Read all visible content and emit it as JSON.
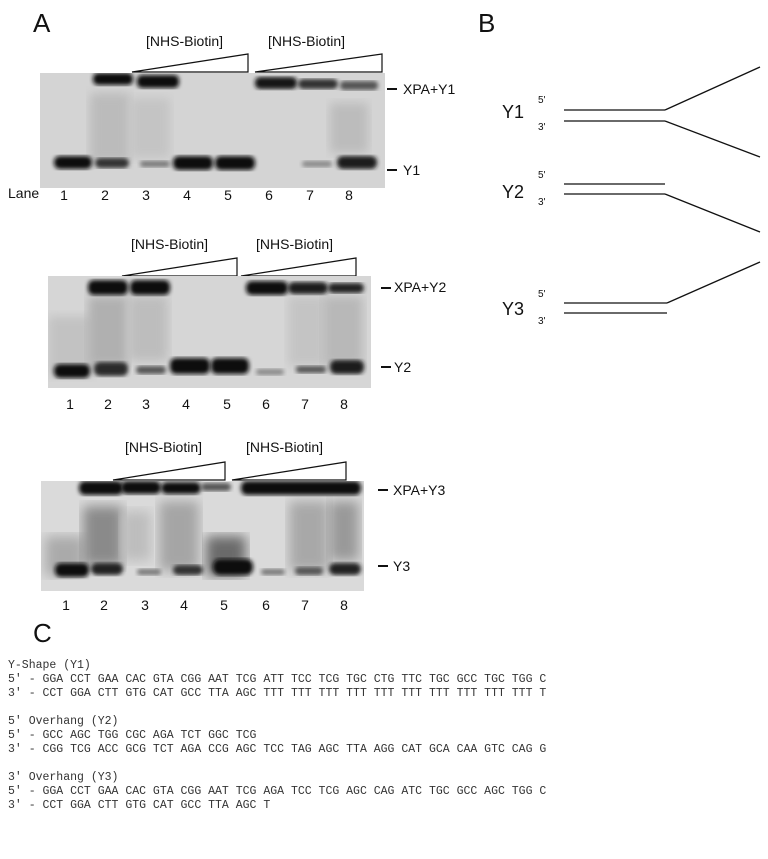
{
  "panels": {
    "a": "A",
    "b": "B",
    "c": "C"
  },
  "gel1": {
    "wedges": [
      "[NHS-Biotin]",
      "[NHS-Biotin]"
    ],
    "complex": "XPA+Y1",
    "free": "Y1",
    "lane_word": "Lane",
    "lanes": [
      "1",
      "2",
      "3",
      "4",
      "5",
      "6",
      "7",
      "8"
    ]
  },
  "gel2": {
    "wedges": [
      "[NHS-Biotin]",
      "[NHS-Biotin]"
    ],
    "complex": "XPA+Y2",
    "free": "Y2",
    "lanes": [
      "1",
      "2",
      "3",
      "4",
      "5",
      "6",
      "7",
      "8"
    ]
  },
  "gel3": {
    "wedges": [
      "[NHS-Biotin]",
      "[NHS-Biotin]"
    ],
    "complex": "XPA+Y3",
    "free": "Y3",
    "lanes": [
      "1",
      "2",
      "3",
      "4",
      "5",
      "6",
      "7",
      "8"
    ]
  },
  "schematic": {
    "y1": {
      "name": "Y1",
      "top": "5'",
      "bottom": "3'"
    },
    "y2": {
      "name": "Y2",
      "top": "5'",
      "bottom": "3'"
    },
    "y3": {
      "name": "Y3",
      "top": "5'",
      "bottom": "3'"
    }
  },
  "sequences": {
    "y1_title": "Y-Shape (Y1)",
    "y1_5": "5' - GGA CCT GAA CAC GTA CGG AAT TCG ATT TCC TCG TGC CTG TTC TGC GCC TGC TGG C",
    "y1_3": "3' - CCT GGA CTT GTG CAT GCC TTA AGC TTT TTT TTT TTT TTT TTT TTT TTT TTT TTT T",
    "y2_title": "5' Overhang (Y2)",
    "y2_5": "5' - GCC AGC TGG CGC AGA TCT GGC TCG",
    "y2_3": "3' - CGG TCG ACC GCG TCT AGA CCG AGC TCC TAG AGC TTA AGG CAT GCA CAA GTC CAG G",
    "y3_title": "3' Overhang (Y3)",
    "y3_5": "5' - GGA CCT GAA CAC GTA CGG AAT TCG AGA TCC TCG AGC CAG ATC TGC GCC AGC TGG C",
    "y3_3": "3' - CCT GGA CTT GTG CAT GCC TTA AGC T"
  }
}
